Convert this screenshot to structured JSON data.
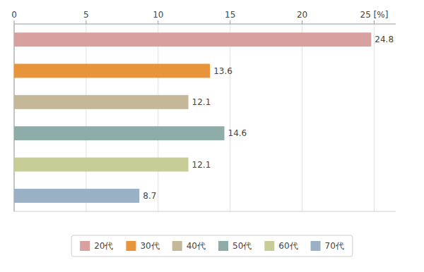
{
  "chart_data": {
    "type": "bar",
    "orientation": "horizontal",
    "categories": [
      "20代",
      "30代",
      "40代",
      "50代",
      "60代",
      "70代"
    ],
    "values": [
      24.8,
      13.6,
      12.1,
      14.6,
      12.1,
      8.7
    ],
    "value_labels": [
      "24.8",
      "13.6",
      "12.1",
      "14.6",
      "12.1",
      "8.7"
    ],
    "colors": [
      "#d9a0a0",
      "#e8943a",
      "#c4b898",
      "#8fada8",
      "#c8cc96",
      "#9ab0c4"
    ],
    "xlim": [
      0,
      26.5
    ],
    "xticks": [
      0,
      5,
      10,
      15,
      20,
      {
        "value": 25,
        "label": "25 [%]"
      }
    ],
    "grid": true,
    "data_labels": true,
    "legend": "bottom"
  }
}
